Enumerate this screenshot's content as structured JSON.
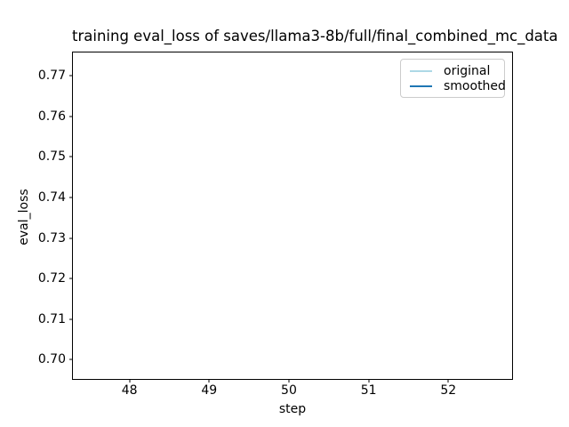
{
  "chart_data": {
    "type": "line",
    "title": "training eval_loss of saves/llama3-8b/full/final_combined_mc_data",
    "xlabel": "step",
    "ylabel": "eval_loss",
    "xlim": [
      47.29,
      52.8
    ],
    "ylim": [
      0.6952,
      0.7758
    ],
    "x_ticks": [
      {
        "label": "48",
        "value": 48
      },
      {
        "label": "49",
        "value": 49
      },
      {
        "label": "50",
        "value": 50
      },
      {
        "label": "51",
        "value": 51
      },
      {
        "label": "52",
        "value": 52
      }
    ],
    "y_ticks": [
      {
        "label": "0.70",
        "value": 0.7
      },
      {
        "label": "0.71",
        "value": 0.71
      },
      {
        "label": "0.72",
        "value": 0.72
      },
      {
        "label": "0.73",
        "value": 0.73
      },
      {
        "label": "0.74",
        "value": 0.74
      },
      {
        "label": "0.75",
        "value": 0.75
      },
      {
        "label": "0.76",
        "value": 0.76
      },
      {
        "label": "0.77",
        "value": 0.77
      }
    ],
    "grid": false,
    "no_visible_data": true,
    "legend": {
      "position": "upper right",
      "entries": [
        "original",
        "smoothed"
      ]
    },
    "series": [
      {
        "name": "original",
        "color": "#add8e6",
        "line_width": 1.5,
        "x": [],
        "y": []
      },
      {
        "name": "smoothed",
        "color": "#1f77b4",
        "line_width": 2,
        "x": [],
        "y": []
      }
    ],
    "colors": {
      "background": "#ffffff",
      "axes_edge": "#000000",
      "text": "#000000",
      "legend_border": "#cccccc"
    }
  }
}
